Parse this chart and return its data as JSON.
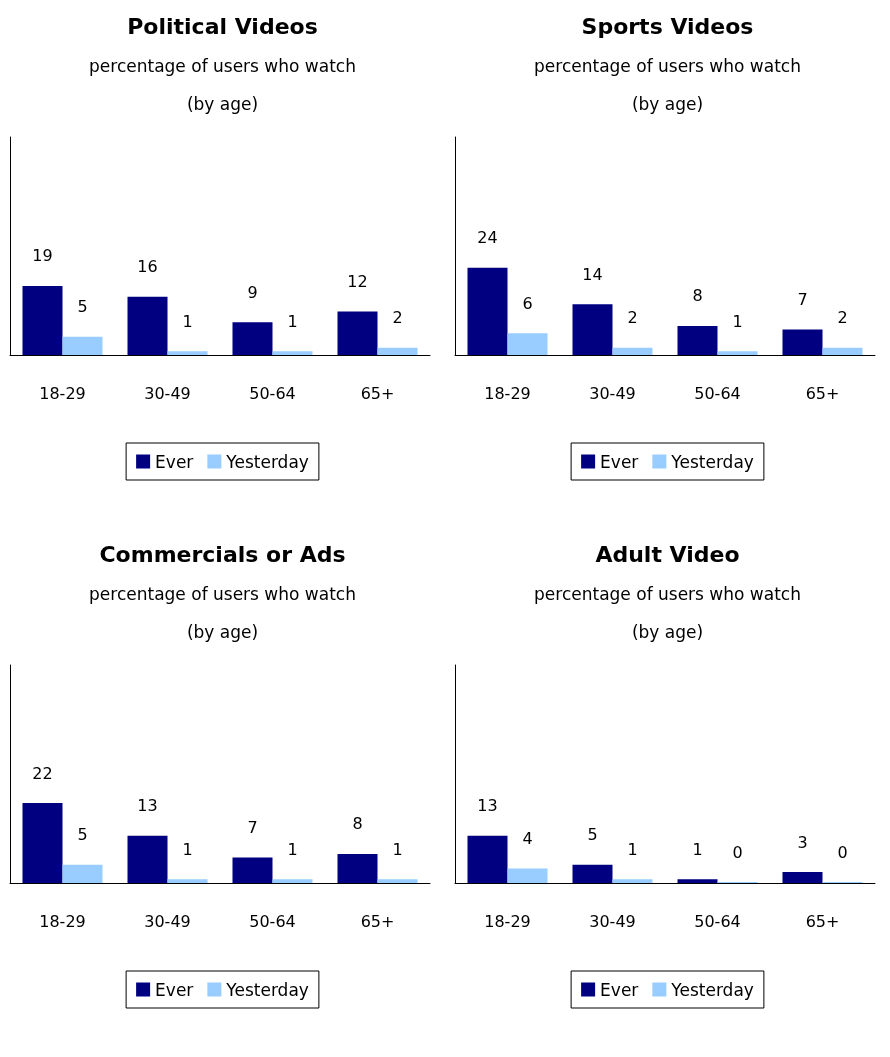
{
  "chart_data": [
    {
      "type": "bar",
      "title": "Political Videos",
      "subtitle": "percentage of users who watch\n(by age)",
      "categories": [
        "18-29",
        "30-49",
        "50-64",
        "65+"
      ],
      "series": [
        {
          "name": "Ever",
          "color": "#000080",
          "values": [
            19,
            16,
            9,
            12
          ]
        },
        {
          "name": "Yesterday",
          "color": "#99ccff",
          "values": [
            5,
            1,
            1,
            2
          ]
        }
      ],
      "ylim": [
        0,
        60
      ],
      "data_labels": true,
      "legend": "bottom",
      "grid": false,
      "tick_labels": "x"
    },
    {
      "type": "bar",
      "title": "Sports Videos",
      "subtitle": "percentage of users who watch\n(by age)",
      "categories": [
        "18-29",
        "30-49",
        "50-64",
        "65+"
      ],
      "series": [
        {
          "name": "Ever",
          "color": "#000080",
          "values": [
            24,
            14,
            8,
            7
          ]
        },
        {
          "name": "Yesterday",
          "color": "#99ccff",
          "values": [
            6,
            2,
            1,
            2
          ]
        }
      ],
      "ylim": [
        0,
        60
      ],
      "data_labels": true,
      "legend": "bottom",
      "grid": false,
      "tick_labels": "x"
    },
    {
      "type": "bar",
      "title": "Commercials or Ads",
      "subtitle": "percentage of users who watch\n(by age)",
      "categories": [
        "18-29",
        "30-49",
        "50-64",
        "65+"
      ],
      "series": [
        {
          "name": "Ever",
          "color": "#000080",
          "values": [
            22,
            13,
            7,
            8
          ]
        },
        {
          "name": "Yesterday",
          "color": "#99ccff",
          "values": [
            5,
            1,
            1,
            1
          ]
        }
      ],
      "ylim": [
        0,
        60
      ],
      "data_labels": true,
      "legend": "bottom",
      "grid": false,
      "tick_labels": "x"
    },
    {
      "type": "bar",
      "title": "Adult Video",
      "subtitle": "percentage of users who watch\n(by age)",
      "categories": [
        "18-29",
        "30-49",
        "50-64",
        "65+"
      ],
      "series": [
        {
          "name": "Ever",
          "color": "#000080",
          "values": [
            13,
            5,
            1,
            3
          ]
        },
        {
          "name": "Yesterday",
          "color": "#99ccff",
          "values": [
            4,
            1,
            0,
            0
          ]
        }
      ],
      "ylim": [
        0,
        60
      ],
      "data_labels": true,
      "legend": "bottom",
      "grid": false,
      "tick_labels": "x"
    }
  ]
}
